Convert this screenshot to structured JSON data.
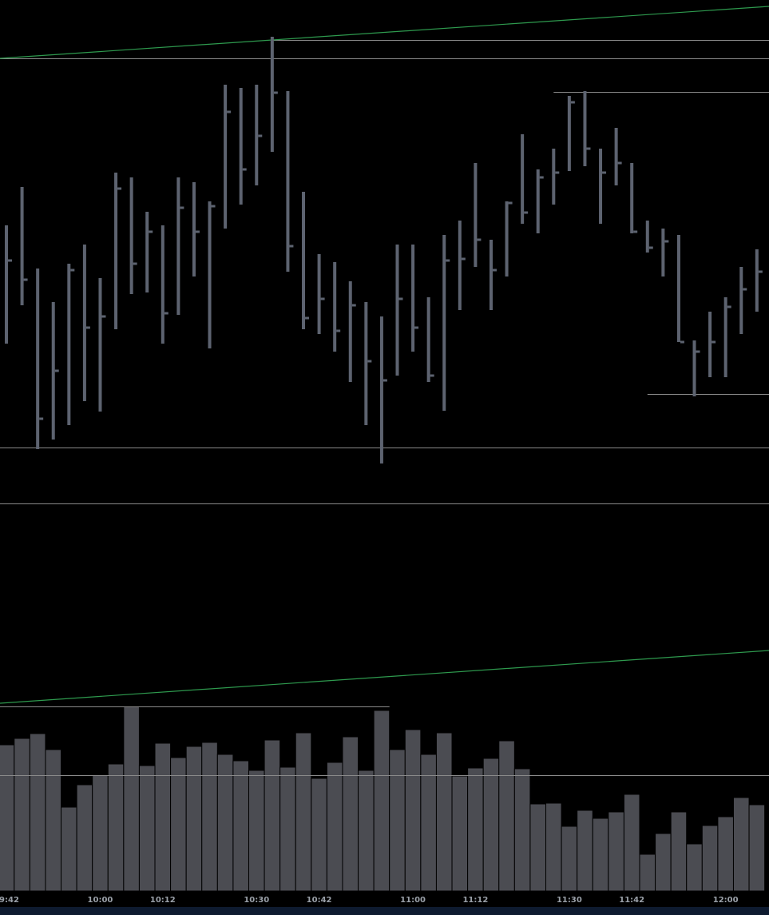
{
  "chart_data": {
    "type": "ohlc",
    "categories": [
      "09:42",
      null,
      null,
      null,
      null,
      null,
      "10:00",
      null,
      null,
      null,
      "10:12",
      null,
      null,
      null,
      null,
      null,
      "10:30",
      null,
      null,
      null,
      "10:42",
      null,
      null,
      null,
      null,
      null,
      "11:00",
      null,
      null,
      null,
      "11:12",
      null,
      null,
      null,
      null,
      null,
      "11:30",
      null,
      null,
      null,
      "11:42",
      null,
      null,
      null,
      null,
      null,
      "12:00",
      null,
      null
    ],
    "high": [
      358,
      406,
      304,
      262,
      310,
      334,
      292,
      424,
      418,
      375,
      358,
      418,
      412,
      388,
      534,
      530,
      534,
      594,
      526,
      400,
      322,
      312,
      288,
      262,
      244,
      334,
      334,
      268,
      346,
      364,
      436,
      340,
      388,
      472,
      428,
      454,
      520,
      526,
      454,
      480,
      436,
      364,
      354,
      346,
      214,
      250,
      268,
      306,
      328
    ],
    "low": [
      210,
      258,
      78,
      90,
      108,
      138,
      125,
      228,
      272,
      274,
      210,
      246,
      294,
      204,
      354,
      384,
      408,
      450,
      300,
      228,
      222,
      200,
      162,
      108,
      60,
      170,
      200,
      162,
      126,
      252,
      306,
      252,
      294,
      360,
      348,
      384,
      426,
      432,
      360,
      408,
      348,
      324,
      294,
      212,
      144,
      168,
      168,
      222,
      250
    ],
    "close": [
      314,
      290,
      116,
      176,
      302,
      230,
      244,
      404,
      310,
      350,
      248,
      380,
      350,
      382,
      500,
      428,
      470,
      524,
      332,
      242,
      266,
      226,
      258,
      188,
      164,
      266,
      230,
      170,
      314,
      316,
      340,
      302,
      386,
      374,
      418,
      424,
      512,
      454,
      424,
      436,
      350,
      330,
      338,
      212,
      200,
      212,
      256,
      278,
      300
    ],
    "color": "#5d6370",
    "ylim": [
      0,
      640
    ],
    "levels": [
      {
        "value": 590,
        "from": 17
      },
      {
        "value": 567
      },
      {
        "value": 525,
        "from": 35
      },
      {
        "value": 147,
        "from": 41
      },
      {
        "value": 80
      },
      {
        "value": 10
      }
    ],
    "trendline": [
      567,
      632
    ],
    "volume": {
      "type": "bar",
      "values": [
        183,
        191,
        197,
        177,
        105,
        133,
        145,
        159,
        231,
        157,
        185,
        167,
        181,
        186,
        171,
        163,
        151,
        189,
        155,
        198,
        141,
        161,
        193,
        151,
        226,
        177,
        202,
        171,
        198,
        144,
        154,
        166,
        188,
        153,
        109,
        110,
        81,
        101,
        91,
        99,
        121,
        46,
        72,
        99,
        59,
        82,
        93,
        117,
        108
      ],
      "color": "#4b4c52",
      "ylim": [
        0,
        465
      ],
      "levels": [
        {
          "value": 231,
          "to": 24
        },
        {
          "value": 145
        }
      ],
      "trendline": [
        235,
        301
      ]
    },
    "level_color": "#8a8a8a",
    "trend_color": "#2e9a4e"
  }
}
